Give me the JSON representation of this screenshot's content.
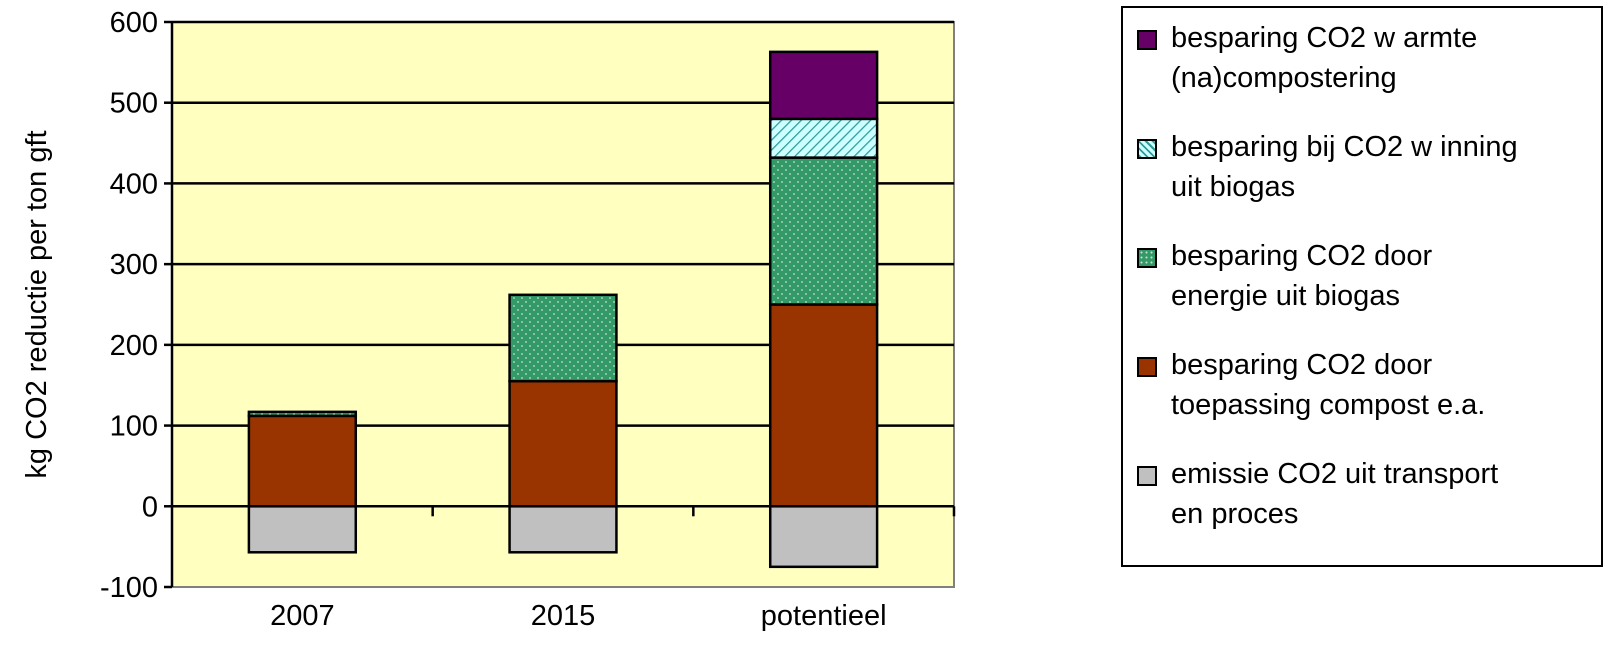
{
  "chart_data": {
    "type": "bar",
    "stacked": true,
    "categories": [
      "2007",
      "2015",
      "potentieel"
    ],
    "ylabel": "kg CO2 reductie per ton gft",
    "xlabel": "",
    "ylim": [
      -100,
      600
    ],
    "yticks": [
      -100,
      0,
      100,
      200,
      300,
      400,
      500,
      600
    ],
    "grid": true,
    "legend_position": "right",
    "plot_background": "#ffffc0",
    "series": [
      {
        "name": "emissie CO2 uit transport en proces",
        "values": [
          -57,
          -57,
          -75
        ],
        "color": "#c0c0c0",
        "pattern": "solid"
      },
      {
        "name": "besparing CO2 door toepassing compost e.a.",
        "values": [
          112,
          155,
          250
        ],
        "color": "#993300",
        "pattern": "solid"
      },
      {
        "name": "besparing CO2 door energie uit biogas",
        "values": [
          5,
          107,
          182
        ],
        "color": "#339966",
        "pattern": "dots"
      },
      {
        "name": "besparing bij CO2 w inning uit biogas",
        "values": [
          0,
          0,
          48
        ],
        "color": "#ccffff",
        "pattern": "hatch"
      },
      {
        "name": "besparing CO2 w armte (na)compostering",
        "values": [
          0,
          0,
          83
        ],
        "color": "#660066",
        "pattern": "solid"
      }
    ]
  }
}
